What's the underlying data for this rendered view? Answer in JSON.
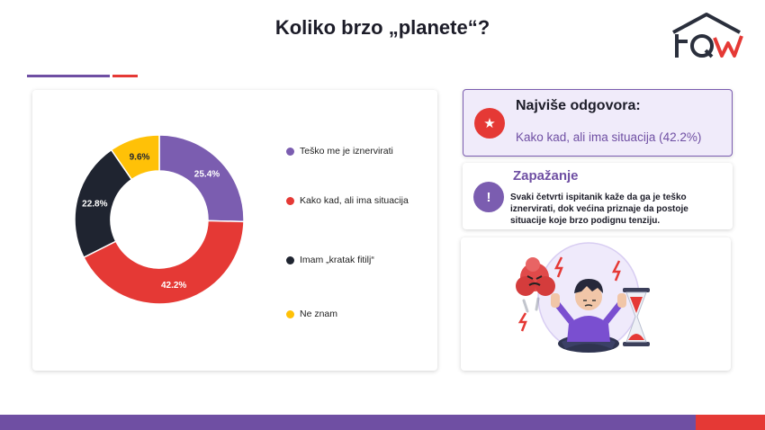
{
  "header": {
    "title": "Koliko brzo „planete“?"
  },
  "chart_data": {
    "type": "pie",
    "categories": [
      "Teško me je iznervirati",
      "Kako kad, ali ima situacija",
      "Imam „kratak fitilj“",
      "Ne znam"
    ],
    "values": [
      25.4,
      42.2,
      22.8,
      9.6
    ],
    "labels": [
      "25.4%",
      "42.2%",
      "22.8%",
      "9.6%"
    ],
    "colors": [
      "#7b5db0",
      "#e53935",
      "#1f2430",
      "#ffc107"
    ],
    "label_colors": [
      "#ffffff",
      "#ffffff",
      "#ffffff",
      "#1f2430"
    ],
    "donut": true,
    "legend_position": "right"
  },
  "highlight": {
    "icon": "star-icon",
    "heading": "Najviše odgovora:",
    "value": "Kako kad, ali ima situacija (42.2%)"
  },
  "observation": {
    "icon": "exclamation-icon",
    "heading": "Zapažanje",
    "text": "Svaki četvrti ispitanik kaže da ga je teško iznervirati, dok većina priznaje da postoje situacije koje brzo podignu tenziju."
  },
  "colors": {
    "purple": "#6f4fa3",
    "red": "#e53935",
    "dark": "#1f2430",
    "yellow": "#ffc107"
  }
}
